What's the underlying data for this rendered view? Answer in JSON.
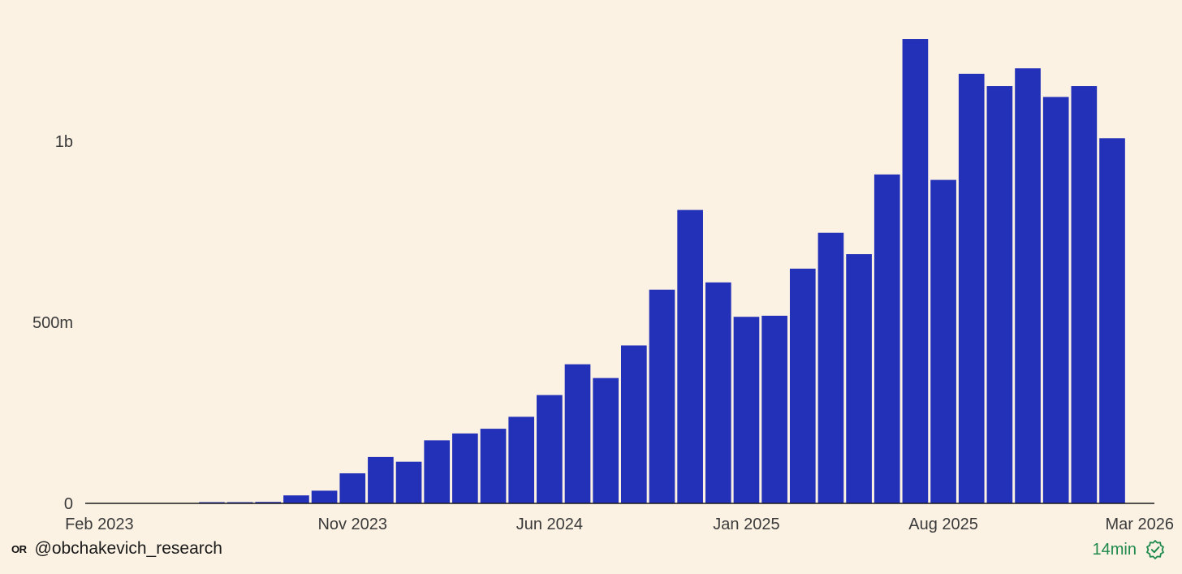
{
  "chart_data": {
    "type": "bar",
    "categories": [
      "Feb 2023",
      "Mar 2023",
      "Apr 2023",
      "May 2023",
      "Jun 2023",
      "Jul 2023",
      "Aug 2023",
      "Sep 2023",
      "Oct 2023",
      "Nov 2023",
      "Dec 2023",
      "Jan 2024",
      "Feb 2024",
      "Mar 2024",
      "Apr 2024",
      "May 2024",
      "Jun 2024",
      "Jul 2024",
      "Aug 2024",
      "Sep 2024",
      "Oct 2024",
      "Nov 2024",
      "Dec 2024",
      "Jan 2025",
      "Feb 2025",
      "Mar 2025",
      "Apr 2025",
      "May 2025",
      "Jun 2025",
      "Jul 2025",
      "Aug 2025",
      "Sep 2025",
      "Oct 2025",
      "Nov 2025",
      "Dec 2025",
      "Jan 2026",
      "Feb 2026",
      "Mar 2026"
    ],
    "values": [
      0,
      0,
      0,
      0,
      1,
      2,
      4,
      22,
      35,
      83,
      128,
      115,
      174,
      193,
      206,
      239,
      299,
      384,
      346,
      436,
      590,
      810,
      610,
      515,
      518,
      648,
      747,
      688,
      908,
      1282,
      893,
      1186,
      1152,
      1201,
      1122,
      1152,
      1008,
      0
    ],
    "y_ticks": [
      {
        "value": 0,
        "label": "0"
      },
      {
        "value": 500000000,
        "label": "500m"
      },
      {
        "value": 1000000000,
        "label": "1b"
      }
    ],
    "value_unit": "millions",
    "x_ticks": [
      "Feb 2023",
      "Nov 2023",
      "Jun 2024",
      "Jan 2025",
      "Aug 2025",
      "Mar 2026"
    ],
    "ylim": [
      0,
      1300
    ],
    "bar_color": "#2330b8",
    "background": "#fcf2e4",
    "grid": false,
    "title": "",
    "xlabel": "",
    "ylabel": ""
  },
  "footer": {
    "logo_text": "OR",
    "handle": "@obchakevich_research",
    "freshness": "14min",
    "freshness_icon": "verified-badge-icon",
    "freshness_color": "#1f8a4c"
  }
}
